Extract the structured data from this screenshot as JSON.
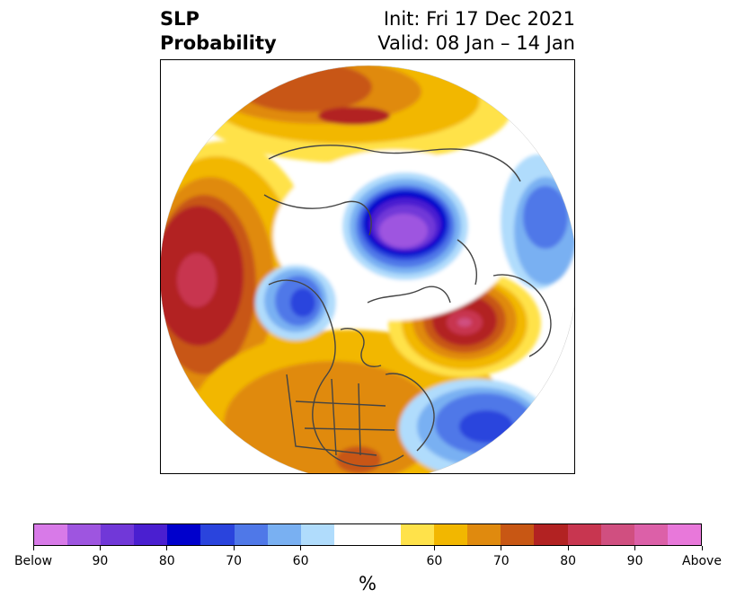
{
  "header": {
    "title_line1": "SLP",
    "title_line2": "Probability",
    "init_text": "Init: Fri 17 Dec 2021",
    "valid_text": "Valid: 08 Jan – 14 Jan"
  },
  "colorbar": {
    "colors": [
      "#d87ae8",
      "#9e55e0",
      "#7138d8",
      "#4a1fd0",
      "#0000cc",
      "#2a44dd",
      "#4f78e8",
      "#79b0f2",
      "#b0dcfc",
      "#ffffff",
      "#ffffff",
      "#ffe24a",
      "#f2b700",
      "#e08a0e",
      "#c85714",
      "#b22222",
      "#c83650",
      "#d04f80",
      "#dc60a8",
      "#e878da"
    ],
    "ticks": [
      "Below",
      "90",
      "80",
      "70",
      "60",
      "60",
      "70",
      "80",
      "90",
      "Above"
    ],
    "unit": "%"
  },
  "map": {
    "map_type": "north-polar-stereographic probability map",
    "field_colors": {
      "below_high": "#9e55e0",
      "below_mid": "#0000cc",
      "below_low": "#4f78e8",
      "below_edge": "#b0dcfc",
      "above_edge": "#ffe24a",
      "above_low": "#f2b700",
      "above_mid": "#e08a0e",
      "above_high": "#b22222",
      "above_max": "#c83650"
    }
  }
}
